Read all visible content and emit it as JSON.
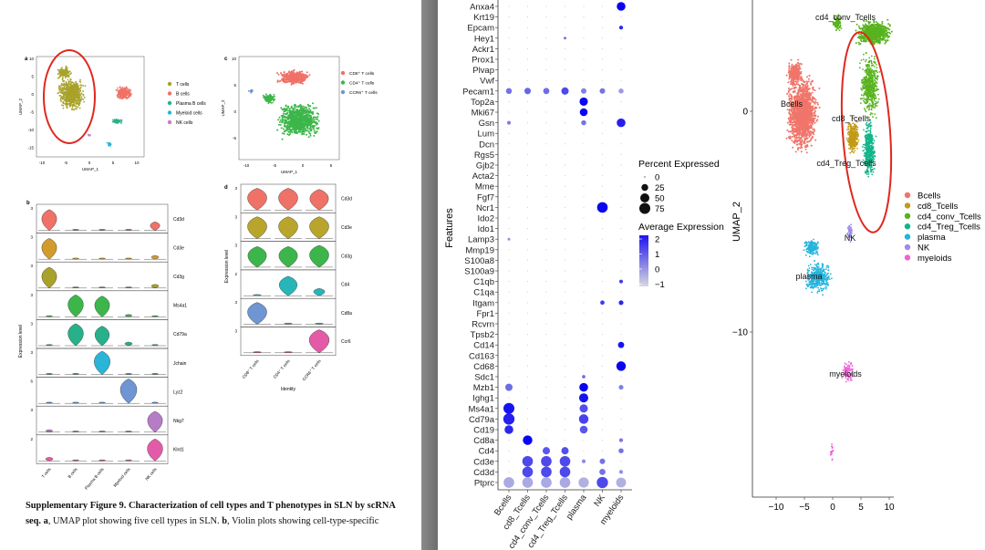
{
  "figure": {
    "caption_title": "Supplementary Figure 9. Characterization of cell types and T phenotypes in SLN by scRNA",
    "caption_body_bold": "seq.",
    "caption_a_label": "a",
    "caption_a_text": ", UMAP plot showing five cell types in SLN. ",
    "caption_b_label": "b",
    "caption_b_text": ", Violin plots showing cell-type-specific"
  },
  "panel_a": {
    "label": "a",
    "xlabel": "UMAP_1",
    "ylabel": "UMAP_2",
    "xticks": [
      "-10",
      "-5",
      "0",
      "5",
      "10"
    ],
    "yticks": [
      "10",
      "5",
      "0",
      "-5",
      "-10",
      "-15"
    ],
    "legend": [
      {
        "name": "T cells",
        "color": "#a8a22a"
      },
      {
        "name": "B cells",
        "color": "#ef7167"
      },
      {
        "name": "Plasma B cells",
        "color": "#27b08a"
      },
      {
        "name": "Myeloid cells",
        "color": "#2ab5d7"
      },
      {
        "name": "NK cells",
        "color": "#c77cc6"
      }
    ]
  },
  "panel_c": {
    "label": "c",
    "xlabel": "UMAP_1",
    "ylabel": "UMAP_2",
    "xticks": [
      "-10",
      "-5",
      "0",
      "5"
    ],
    "yticks": [
      "10",
      "5",
      "0",
      "-5"
    ],
    "legend": [
      {
        "name": "CD8⁺ T cells",
        "color": "#ef7167"
      },
      {
        "name": "CD4⁺ T cells",
        "color": "#3cb64a"
      },
      {
        "name": "CCR6⁺ T cells",
        "color": "#6f95d3"
      }
    ]
  },
  "panel_b": {
    "label": "b",
    "ylabel": "Expression level",
    "xlabel": "Identity",
    "genes": [
      "Cd3d",
      "Cd3e",
      "Cd3g",
      "Ms4a1",
      "Cd79a",
      "Jchain",
      "Lyz2",
      "Nkg7",
      "Klrd1"
    ],
    "gene_ymax": [
      "3",
      "3",
      "3",
      "3",
      "3",
      "3",
      "6",
      "3",
      "2"
    ],
    "cell_types": [
      "T cells",
      "B cells",
      "Plasma B cells",
      "Myeloid cells",
      "NK cells"
    ],
    "colors": [
      "#ef7167",
      "#d39a2c",
      "#a8a22a",
      "#3cb64a",
      "#27b08a",
      "#2ab5d7",
      "#6f95d3",
      "#b67cc6",
      "#e35ba8"
    ],
    "expression": [
      [
        0.85,
        0.05,
        0.05,
        0.05,
        0.35
      ],
      [
        0.85,
        0.05,
        0.05,
        0.05,
        0.15
      ],
      [
        0.85,
        0.05,
        0.05,
        0.05,
        0.15
      ],
      [
        0.05,
        0.9,
        0.85,
        0.1,
        0.05
      ],
      [
        0.05,
        0.9,
        0.8,
        0.15,
        0.05
      ],
      [
        0.05,
        0.05,
        0.95,
        0.05,
        0.05
      ],
      [
        0.05,
        0.05,
        0.05,
        1.0,
        0.05
      ],
      [
        0.1,
        0.05,
        0.05,
        0.05,
        0.85
      ],
      [
        0.15,
        0.05,
        0.05,
        0.05,
        0.9
      ]
    ]
  },
  "panel_d": {
    "label": "d",
    "ylabel": "Expression level",
    "xlabel": "Identity",
    "genes": [
      "Cd3d",
      "Cd3e",
      "Cd3g",
      "Cd4",
      "Cd8a",
      "Ccr6"
    ],
    "gene_ymax": [
      "3",
      "3",
      "3",
      "2",
      "3",
      "3"
    ],
    "cell_types": [
      "CD8⁺ T cells",
      "CD4⁺ T cells",
      "CCR6⁺ T cells"
    ],
    "colors": [
      "#ef7167",
      "#b9a52c",
      "#3cb64a",
      "#27b5b8",
      "#6f95d3",
      "#e35ba8"
    ],
    "expression": [
      [
        0.9,
        0.9,
        0.85
      ],
      [
        0.9,
        0.9,
        0.9
      ],
      [
        0.85,
        0.85,
        0.9
      ],
      [
        0.05,
        0.8,
        0.3
      ],
      [
        0.9,
        0.05,
        0.05
      ],
      [
        0.05,
        0.05,
        0.95
      ]
    ]
  },
  "dotplot": {
    "ylabel": "Features",
    "features": [
      "Anxa4",
      "Krt19",
      "Epcam",
      "Hey1",
      "Ackr1",
      "Prox1",
      "Plvap",
      "Vwf",
      "Pecam1",
      "Top2a",
      "Mki67",
      "Gsn",
      "Lum",
      "Dcn",
      "Rgs5",
      "Gjb2",
      "Acta2",
      "Mme",
      "Fgf7",
      "Ncr1",
      "Ido2",
      "Ido1",
      "Lamp3",
      "Mmp19",
      "S100a8",
      "S100a9",
      "C1qb",
      "C1qa",
      "Itgam",
      "Fpr1",
      "Rcvrn",
      "Tpsb2",
      "Cd14",
      "Cd163",
      "Cd68",
      "Sdc1",
      "Mzb1",
      "Ighg1",
      "Ms4a1",
      "Cd79a",
      "Cd19",
      "Cd8a",
      "Cd4",
      "Cd3e",
      "Cd3d",
      "Ptprc"
    ],
    "groups": [
      "Bcells",
      "cd8_Tcells",
      "cd4_conv_Tcells",
      "cd4_Treg_Tcells",
      "plasma",
      "NK",
      "myeloids"
    ],
    "percent_title": "Percent Expressed",
    "percent_levels": [
      "0",
      "25",
      "50",
      "75"
    ],
    "avg_title": "Average Expression",
    "avg_ticks": [
      "2",
      "1",
      "0",
      "−1"
    ],
    "dots": [
      {
        "f": "Anxa4",
        "g": "myeloids",
        "p": 45,
        "e": 2
      },
      {
        "f": "Epcam",
        "g": "myeloids",
        "p": 6,
        "e": 1.5
      },
      {
        "f": "Hey1",
        "g": "cd4_Treg_Tcells",
        "p": 2,
        "e": 0.5
      },
      {
        "f": "Pecam1",
        "g": "Bcells",
        "p": 18,
        "e": 0.4
      },
      {
        "f": "Pecam1",
        "g": "cd8_Tcells",
        "p": 22,
        "e": 0.6
      },
      {
        "f": "Pecam1",
        "g": "cd4_conv_Tcells",
        "p": 20,
        "e": 0.5
      },
      {
        "f": "Pecam1",
        "g": "cd4_Treg_Tcells",
        "p": 30,
        "e": 1.0
      },
      {
        "f": "Pecam1",
        "g": "plasma",
        "p": 15,
        "e": 0.2
      },
      {
        "f": "Pecam1",
        "g": "NK",
        "p": 15,
        "e": 0.4
      },
      {
        "f": "Pecam1",
        "g": "myeloids",
        "p": 12,
        "e": -0.2
      },
      {
        "f": "Top2a",
        "g": "plasma",
        "p": 40,
        "e": 2
      },
      {
        "f": "Mki67",
        "g": "plasma",
        "p": 35,
        "e": 2
      },
      {
        "f": "Gsn",
        "g": "Bcells",
        "p": 5,
        "e": 0.3
      },
      {
        "f": "Gsn",
        "g": "plasma",
        "p": 12,
        "e": 0.4
      },
      {
        "f": "Gsn",
        "g": "myeloids",
        "p": 45,
        "e": 1.6
      },
      {
        "f": "Ncr1",
        "g": "NK",
        "p": 70,
        "e": 2
      },
      {
        "f": "Lamp3",
        "g": "Bcells",
        "p": 2,
        "e": 0
      },
      {
        "f": "C1qb",
        "g": "myeloids",
        "p": 5,
        "e": 1.2
      },
      {
        "f": "Itgam",
        "g": "NK",
        "p": 8,
        "e": 1.2
      },
      {
        "f": "Itgam",
        "g": "myeloids",
        "p": 10,
        "e": 1.5
      },
      {
        "f": "Cd14",
        "g": "myeloids",
        "p": 20,
        "e": 1.8
      },
      {
        "f": "Cd68",
        "g": "myeloids",
        "p": 55,
        "e": 2
      },
      {
        "f": "Sdc1",
        "g": "plasma",
        "p": 4,
        "e": 0.5
      },
      {
        "f": "Mzb1",
        "g": "Bcells",
        "p": 30,
        "e": 0.5
      },
      {
        "f": "Mzb1",
        "g": "plasma",
        "p": 45,
        "e": 2
      },
      {
        "f": "Mzb1",
        "g": "myeloids",
        "p": 10,
        "e": 0.2
      },
      {
        "f": "Ighg1",
        "g": "plasma",
        "p": 50,
        "e": 1.8
      },
      {
        "f": "Ms4a1",
        "g": "Bcells",
        "p": 75,
        "e": 1.8
      },
      {
        "f": "Ms4a1",
        "g": "plasma",
        "p": 40,
        "e": 0.9
      },
      {
        "f": "Cd79a",
        "g": "Bcells",
        "p": 80,
        "e": 1.6
      },
      {
        "f": "Cd79a",
        "g": "plasma",
        "p": 55,
        "e": 1.1
      },
      {
        "f": "Cd19",
        "g": "Bcells",
        "p": 45,
        "e": 1.5
      },
      {
        "f": "Cd19",
        "g": "plasma",
        "p": 35,
        "e": 0.8
      },
      {
        "f": "Cd8a",
        "g": "cd8_Tcells",
        "p": 55,
        "e": 2
      },
      {
        "f": "Cd8a",
        "g": "myeloids",
        "p": 6,
        "e": 0.3
      },
      {
        "f": "Cd4",
        "g": "cd4_conv_Tcells",
        "p": 30,
        "e": 0.8
      },
      {
        "f": "Cd4",
        "g": "cd4_Treg_Tcells",
        "p": 30,
        "e": 0.9
      },
      {
        "f": "Cd4",
        "g": "myeloids",
        "p": 12,
        "e": 0.4
      },
      {
        "f": "Cd3e",
        "g": "cd8_Tcells",
        "p": 70,
        "e": 1.0
      },
      {
        "f": "Cd3e",
        "g": "cd4_conv_Tcells",
        "p": 70,
        "e": 1.0
      },
      {
        "f": "Cd3e",
        "g": "cd4_Treg_Tcells",
        "p": 70,
        "e": 1.0
      },
      {
        "f": "Cd3e",
        "g": "plasma",
        "p": 6,
        "e": 0
      },
      {
        "f": "Cd3e",
        "g": "NK",
        "p": 15,
        "e": 0.4
      },
      {
        "f": "Cd3d",
        "g": "cd8_Tcells",
        "p": 70,
        "e": 1.0
      },
      {
        "f": "Cd3d",
        "g": "cd4_conv_Tcells",
        "p": 70,
        "e": 1.0
      },
      {
        "f": "Cd3d",
        "g": "cd4_Treg_Tcells",
        "p": 70,
        "e": 1.0
      },
      {
        "f": "Cd3d",
        "g": "NK",
        "p": 20,
        "e": 0.4
      },
      {
        "f": "Cd3d",
        "g": "myeloids",
        "p": 6,
        "e": 0
      },
      {
        "f": "Ptprc",
        "g": "Bcells",
        "p": 70,
        "e": -0.4
      },
      {
        "f": "Ptprc",
        "g": "cd8_Tcells",
        "p": 70,
        "e": -0.4
      },
      {
        "f": "Ptprc",
        "g": "cd4_conv_Tcells",
        "p": 70,
        "e": -0.4
      },
      {
        "f": "Ptprc",
        "g": "cd4_Treg_Tcells",
        "p": 70,
        "e": -0.4
      },
      {
        "f": "Ptprc",
        "g": "plasma",
        "p": 65,
        "e": -0.5
      },
      {
        "f": "Ptprc",
        "g": "NK",
        "p": 80,
        "e": 1.0
      },
      {
        "f": "Ptprc",
        "g": "myeloids",
        "p": 60,
        "e": -0.5
      }
    ]
  },
  "umap_large": {
    "ylabel": "UMAP_2",
    "xticks": [
      "−10",
      "−5",
      "0",
      "5",
      "10"
    ],
    "yticks": [
      "0",
      "−10"
    ],
    "cluster_labels": [
      "cd4_conv_Tcells",
      "Bcells",
      "cd8_Tcells",
      "cd4_Treg_Tcells",
      "NK",
      "plasma",
      "myeloids"
    ],
    "legend": [
      {
        "name": "Bcells",
        "color": "#f0756a"
      },
      {
        "name": "cd8_Tcells",
        "color": "#c19a18"
      },
      {
        "name": "cd4_conv_Tcells",
        "color": "#58b31e"
      },
      {
        "name": "cd4_Treg_Tcells",
        "color": "#12b58a"
      },
      {
        "name": "plasma",
        "color": "#25b4dc"
      },
      {
        "name": "NK",
        "color": "#9d8be8"
      },
      {
        "name": "myeloids",
        "color": "#f063d6"
      }
    ]
  }
}
